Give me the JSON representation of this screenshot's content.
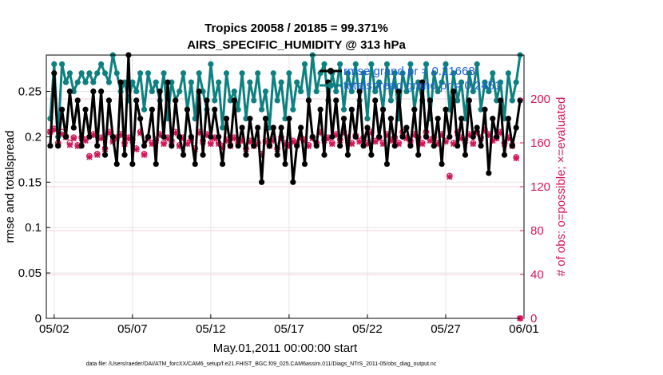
{
  "chart_data": {
    "type": "line",
    "title": "Tropics 20058 / 20185 = 99.371%",
    "subtitle": "AIRS_SPECIFIC_HUMIDITY @ 313 hPa",
    "xlabel": "May.01,2011 00:00:00 start",
    "ylabel": "rmse and totalspread",
    "y2label": "# of obs: o=possible; ×=evaluated",
    "footnote": "data file: /Users/raeder/DAI/ATM_forcXX/CAM6_setup/f.e21.FHIST_BGC.f09_025.CAM6assim.011/Diags_NTrS_2011-05/obs_diag_output.nc",
    "x_tick_labels": [
      "05/02",
      "05/07",
      "05/12",
      "05/17",
      "05/22",
      "05/27",
      "06/01"
    ],
    "x_tick_days": [
      1,
      6,
      11,
      16,
      21,
      26,
      31
    ],
    "xlim": [
      0.5,
      31.0
    ],
    "ylim": [
      0,
      0.29
    ],
    "y_ticks": [
      0,
      0.05,
      0.1,
      0.15,
      0.2,
      0.25
    ],
    "y_tick_labels": [
      "0",
      "0.05",
      "0.1",
      "0.15",
      "0.2",
      "0.25"
    ],
    "y2lim": [
      0,
      240
    ],
    "y2_ticks": [
      0,
      40,
      80,
      120,
      160,
      200
    ],
    "y2_tick_labels": [
      "0",
      "40",
      "80",
      "120",
      "160",
      "200"
    ],
    "grid": true,
    "legend_position": "top-right",
    "x_days": [
      0.75,
      1.0,
      1.25,
      1.5,
      1.75,
      2.0,
      2.25,
      2.5,
      2.75,
      3.0,
      3.25,
      3.5,
      3.75,
      4.0,
      4.25,
      4.5,
      4.75,
      5.0,
      5.25,
      5.5,
      5.75,
      6.0,
      6.25,
      6.5,
      6.75,
      7.0,
      7.25,
      7.5,
      7.75,
      8.0,
      8.25,
      8.5,
      8.75,
      9.0,
      9.25,
      9.5,
      9.75,
      10.0,
      10.25,
      10.5,
      10.75,
      11.0,
      11.25,
      11.5,
      11.75,
      12.0,
      12.25,
      12.5,
      12.75,
      13.0,
      13.25,
      13.5,
      13.75,
      14.0,
      14.25,
      14.5,
      14.75,
      15.0,
      15.25,
      15.5,
      15.75,
      16.0,
      16.25,
      16.5,
      16.75,
      17.0,
      17.25,
      17.5,
      17.75,
      18.0,
      18.25,
      18.5,
      18.75,
      19.0,
      19.25,
      19.5,
      19.75,
      20.0,
      20.25,
      20.5,
      20.75,
      21.0,
      21.25,
      21.5,
      21.75,
      22.0,
      22.25,
      22.5,
      22.75,
      23.0,
      23.25,
      23.5,
      23.75,
      24.0,
      24.25,
      24.5,
      24.75,
      25.0,
      25.25,
      25.5,
      25.75,
      26.0,
      26.25,
      26.5,
      26.75,
      27.0,
      27.25,
      27.5,
      27.75,
      28.0,
      28.25,
      28.5,
      28.75,
      29.0,
      29.25,
      29.5,
      29.75,
      30.0,
      30.25,
      30.5,
      30.75
    ],
    "series": [
      {
        "name": "rmse grand pr = 0.21668",
        "color": "#000000",
        "marker": "circle",
        "axis": "left",
        "values": [
          0.19,
          0.27,
          0.19,
          0.23,
          0.2,
          0.25,
          0.21,
          0.24,
          0.19,
          0.23,
          0.2,
          0.25,
          0.19,
          0.25,
          0.18,
          0.24,
          0.2,
          0.17,
          0.26,
          0.18,
          0.29,
          0.17,
          0.24,
          0.22,
          0.19,
          0.2,
          0.23,
          0.17,
          0.25,
          0.2,
          0.26,
          0.19,
          0.24,
          0.2,
          0.18,
          0.23,
          0.2,
          0.17,
          0.25,
          0.18,
          0.24,
          0.2,
          0.23,
          0.2,
          0.17,
          0.22,
          0.19,
          0.24,
          0.19,
          0.21,
          0.18,
          0.22,
          0.19,
          0.21,
          0.15,
          0.22,
          0.19,
          0.21,
          0.18,
          0.21,
          0.17,
          0.22,
          0.15,
          0.19,
          0.21,
          0.17,
          0.24,
          0.2,
          0.19,
          0.23,
          0.18,
          0.26,
          0.2,
          0.24,
          0.19,
          0.22,
          0.18,
          0.23,
          0.2,
          0.25,
          0.19,
          0.21,
          0.18,
          0.24,
          0.2,
          0.23,
          0.17,
          0.22,
          0.19,
          0.25,
          0.2,
          0.21,
          0.19,
          0.23,
          0.18,
          0.26,
          0.2,
          0.24,
          0.19,
          0.22,
          0.17,
          0.23,
          0.2,
          0.25,
          0.19,
          0.22,
          0.18,
          0.24,
          0.2,
          0.21,
          0.19,
          0.23,
          0.16,
          0.22,
          0.2,
          0.24,
          0.18,
          0.22,
          0.19,
          0.21,
          0.24
        ]
      },
      {
        "name": "totalspread grand pr = 0.2451",
        "color": "#0e8080",
        "marker": "circle",
        "axis": "left",
        "values": [
          0.22,
          0.28,
          0.2,
          0.28,
          0.26,
          0.27,
          0.25,
          0.26,
          0.27,
          0.26,
          0.27,
          0.26,
          0.27,
          0.28,
          0.27,
          0.26,
          0.29,
          0.27,
          0.25,
          0.26,
          0.24,
          0.26,
          0.25,
          0.27,
          0.23,
          0.27,
          0.25,
          0.26,
          0.24,
          0.27,
          0.22,
          0.26,
          0.24,
          0.25,
          0.27,
          0.23,
          0.26,
          0.22,
          0.27,
          0.25,
          0.23,
          0.28,
          0.24,
          0.26,
          0.21,
          0.27,
          0.24,
          0.25,
          0.23,
          0.27,
          0.22,
          0.26,
          0.24,
          0.27,
          0.23,
          0.25,
          0.21,
          0.27,
          0.24,
          0.26,
          0.22,
          0.27,
          0.23,
          0.26,
          0.25,
          0.28,
          0.24,
          0.29,
          0.25,
          0.27,
          0.28,
          0.24,
          0.27,
          0.25,
          0.28,
          0.23,
          0.27,
          0.25,
          0.28,
          0.24,
          0.27,
          0.22,
          0.28,
          0.25,
          0.26,
          0.23,
          0.28,
          0.24,
          0.27,
          0.22,
          0.27,
          0.25,
          0.28,
          0.23,
          0.26,
          0.24,
          0.28,
          0.22,
          0.27,
          0.25,
          0.26,
          0.28,
          0.23,
          0.27,
          0.24,
          0.26,
          0.22,
          0.27,
          0.25,
          0.28,
          0.23,
          0.26,
          0.25,
          0.27,
          0.24,
          0.26,
          0.22,
          0.27,
          0.24,
          0.26,
          0.29
        ]
      }
    ],
    "obs_possible": [
      170,
      173,
      160,
      170,
      166,
      160,
      165,
      158,
      165,
      163,
      148,
      168,
      150,
      165,
      155,
      170,
      162,
      165,
      168,
      160,
      165,
      163,
      155,
      170,
      150,
      165,
      160,
      163,
      168,
      160,
      165,
      162,
      170,
      158,
      165,
      160,
      163,
      155,
      170,
      162,
      168,
      160,
      165,
      160,
      157,
      163,
      158,
      165,
      160,
      163,
      155,
      162,
      158,
      160,
      150,
      162,
      158,
      163,
      155,
      165,
      160,
      158,
      162,
      160,
      165,
      163,
      158,
      165,
      160,
      170,
      163,
      165,
      160,
      168,
      163,
      170,
      165,
      160,
      167,
      162,
      165,
      160,
      170,
      162,
      165,
      160,
      168,
      163,
      165,
      160,
      170,
      165,
      162,
      168,
      165,
      160,
      170,
      163,
      165,
      160,
      168,
      162,
      130,
      160,
      170,
      165,
      163,
      168,
      160,
      170,
      165,
      172,
      168,
      163,
      165,
      170,
      160,
      165,
      158,
      147,
      0
    ],
    "obs_evaluated": [
      170,
      172,
      158,
      168,
      165,
      158,
      164,
      157,
      164,
      162,
      147,
      167,
      149,
      164,
      154,
      169,
      161,
      164,
      167,
      159,
      164,
      162,
      154,
      169,
      149,
      164,
      159,
      162,
      167,
      159,
      164,
      161,
      169,
      157,
      164,
      159,
      162,
      154,
      169,
      161,
      167,
      159,
      164,
      159,
      156,
      162,
      157,
      164,
      159,
      162,
      154,
      161,
      157,
      159,
      149,
      161,
      157,
      162,
      154,
      164,
      159,
      157,
      161,
      159,
      164,
      162,
      157,
      164,
      159,
      169,
      162,
      164,
      159,
      167,
      162,
      169,
      164,
      159,
      166,
      161,
      164,
      159,
      169,
      161,
      164,
      159,
      167,
      162,
      164,
      159,
      169,
      164,
      161,
      167,
      164,
      159,
      169,
      162,
      164,
      159,
      167,
      161,
      129,
      159,
      169,
      164,
      162,
      167,
      159,
      169,
      164,
      171,
      167,
      162,
      164,
      169,
      159,
      164,
      157,
      146,
      0
    ],
    "obs_color": "#d4145a"
  }
}
